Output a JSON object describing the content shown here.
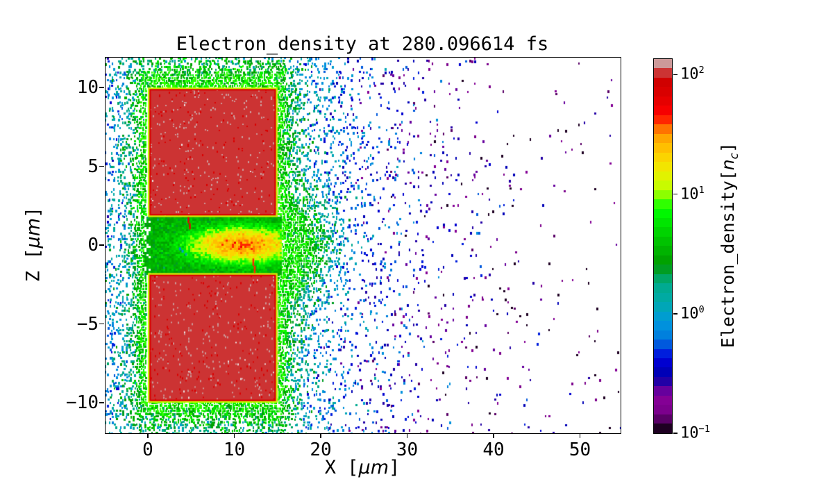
{
  "figure": {
    "title": "Electron_density at 280.096614 fs",
    "background": "#ffffff"
  },
  "axes": {
    "xlabel": {
      "prefix": "X [",
      "italic": "μm",
      "suffix": "]"
    },
    "ylabel": {
      "prefix": "Z [",
      "italic": "μm",
      "suffix": "]"
    },
    "xticks": [
      {
        "label": "0",
        "value": 0
      },
      {
        "label": "10",
        "value": 10
      },
      {
        "label": "20",
        "value": 20
      },
      {
        "label": "30",
        "value": 30
      },
      {
        "label": "40",
        "value": 40
      },
      {
        "label": "50",
        "value": 50
      }
    ],
    "yticks": [
      {
        "label": "10",
        "value": 10
      },
      {
        "label": "5",
        "value": 5
      },
      {
        "label": "0",
        "value": 0
      },
      {
        "label": "−5",
        "value": -5
      },
      {
        "label": "−10",
        "value": -10
      }
    ]
  },
  "colorbar_ui": {
    "label": {
      "prefix": "Electron_density[",
      "italic": "n",
      "sub": "c",
      "suffix": "]"
    },
    "ticks": [
      {
        "base": "10",
        "exp": "2",
        "value": 100
      },
      {
        "base": "10",
        "exp": "1",
        "value": 10
      },
      {
        "base": "10",
        "exp": "0",
        "value": 1
      },
      {
        "base": "10",
        "exp": "−1",
        "value": 0.1
      }
    ]
  },
  "chart_data": {
    "type": "heatmap",
    "title": "Electron_density at 280.096614 fs",
    "time_fs": 280.096614,
    "xlabel": "X [μm]",
    "ylabel": "Z [μm]",
    "xlim": [
      -4.9,
      54.7
    ],
    "ylim": [
      -11.9,
      11.9
    ],
    "xticks": [
      0,
      10,
      20,
      30,
      40,
      50
    ],
    "yticks": [
      10,
      5,
      0,
      -5,
      -10
    ],
    "grid": false,
    "colorbar": {
      "label": "Electron_density[n_c]",
      "scale": "log",
      "vmin": 0.1,
      "vmax": 135,
      "tick_values": [
        100,
        10,
        1,
        0.1
      ],
      "n_bands": 40,
      "colormap": "nipy_spectral",
      "anchors": [
        [
          0.0,
          "#000000"
        ],
        [
          0.05,
          "#770088"
        ],
        [
          0.1,
          "#880099"
        ],
        [
          0.15,
          "#0000aa"
        ],
        [
          0.2,
          "#0000dd"
        ],
        [
          0.25,
          "#0077dd"
        ],
        [
          0.3,
          "#0099dd"
        ],
        [
          0.35,
          "#00aaaa"
        ],
        [
          0.4,
          "#00aa88"
        ],
        [
          0.45,
          "#009900"
        ],
        [
          0.5,
          "#00bb00"
        ],
        [
          0.55,
          "#00dd00"
        ],
        [
          0.6,
          "#00ff00"
        ],
        [
          0.65,
          "#bbff00"
        ],
        [
          0.7,
          "#eeee00"
        ],
        [
          0.75,
          "#ffcc00"
        ],
        [
          0.8,
          "#ff9900"
        ],
        [
          0.85,
          "#ff0000"
        ],
        [
          0.9,
          "#dd0000"
        ],
        [
          0.95,
          "#cc0000"
        ],
        [
          1.0,
          "#cccccc"
        ]
      ]
    },
    "features": {
      "slab_upper": {
        "x_um": [
          0,
          15
        ],
        "z_um": [
          1.78,
          10
        ],
        "density_nc": 102
      },
      "slab_lower": {
        "x_um": [
          0,
          15
        ],
        "z_um": [
          -10,
          -1.78
        ],
        "density_nc": 102
      },
      "slab_edge_density_nc": 11,
      "slab_edge_inner_line_density_nc": 70,
      "channel": {
        "x_um": [
          -0.4,
          15.3
        ],
        "z_um": [
          -1.78,
          1.78
        ],
        "base_density_nc": 3.2
      },
      "channel_hotspot": {
        "center_um": [
          11,
          0
        ],
        "rx_um": 4.6,
        "rz_um": 0.82,
        "peak_density_nc": 33
      },
      "halo_scale_um": 0.9,
      "cloud": {
        "amp1": 0.5,
        "scale1_um": 6.8,
        "amp2": 0.055,
        "scale2_um": 20
      },
      "plume": {
        "amp": 0.95,
        "x0_um": 15,
        "x_scale_um": 5.5,
        "z_scale_um": 3.0
      },
      "strands": [
        {
          "x_um": 4.6,
          "z_from": 1.78,
          "z_to": 1.0,
          "density_nc": 60
        },
        {
          "x_um": 12.1,
          "z_from": -0.85,
          "z_to": -1.78,
          "density_nc": 45
        }
      ],
      "defects": [
        {
          "x_um": 3.9,
          "z_um": -0.3,
          "density_nc": 0.9
        },
        {
          "x_um": 4.3,
          "z_um": -0.5,
          "density_nc": 1.4
        },
        {
          "x_um": 3.6,
          "z_um": -0.15,
          "density_nc": 0.7
        }
      ]
    }
  }
}
